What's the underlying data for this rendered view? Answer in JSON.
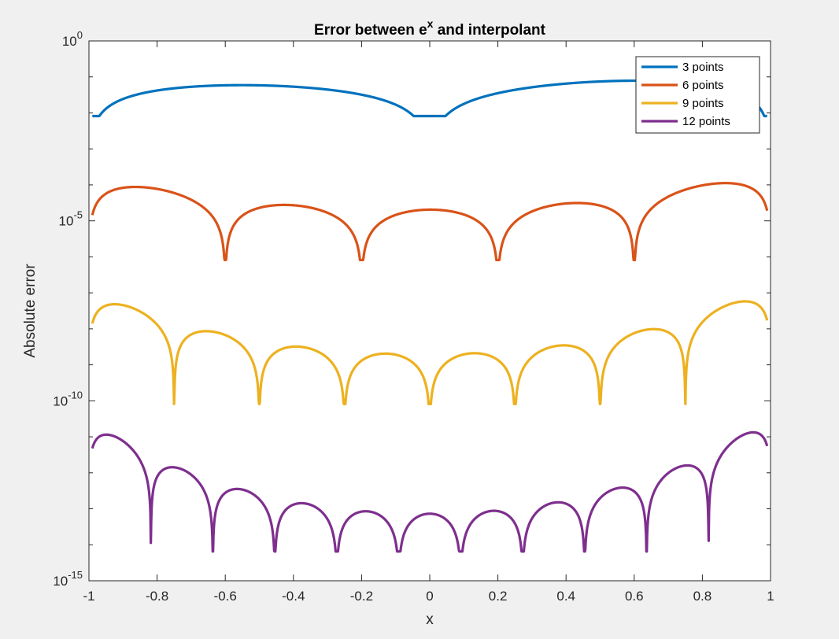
{
  "chart_data": {
    "type": "line",
    "title": "Error between e",
    "title_superscript": "x",
    "title_suffix": " and interpolant",
    "xlabel": "x",
    "ylabel": "Absolute error",
    "xlim": [
      -1,
      1
    ],
    "ylim": [
      1e-15,
      1
    ],
    "yscale": "log",
    "grid": false,
    "legend_position": "top-right",
    "x_ticks": [
      {
        "value": -1,
        "label": "-1"
      },
      {
        "value": -0.8,
        "label": "-0.8"
      },
      {
        "value": -0.6,
        "label": "-0.6"
      },
      {
        "value": -0.4,
        "label": "-0.4"
      },
      {
        "value": -0.2,
        "label": "-0.2"
      },
      {
        "value": 0,
        "label": "0"
      },
      {
        "value": 0.2,
        "label": "0.2"
      },
      {
        "value": 0.4,
        "label": "0.4"
      },
      {
        "value": 0.6,
        "label": "0.6"
      },
      {
        "value": 0.8,
        "label": "0.8"
      },
      {
        "value": 1,
        "label": "1"
      }
    ],
    "y_ticks": [
      {
        "exp": 0,
        "base": "10",
        "sup": "0"
      },
      {
        "exp": -5,
        "base": "10",
        "sup": "-5"
      },
      {
        "exp": -10,
        "base": "10",
        "sup": "-10"
      },
      {
        "exp": -15,
        "base": "10",
        "sup": "-15"
      }
    ],
    "series": [
      {
        "name": "3 points",
        "n": 3,
        "color": "#0072bd"
      },
      {
        "name": "6 points",
        "n": 6,
        "color": "#d95319"
      },
      {
        "name": "9 points",
        "n": 9,
        "color": "#edb120"
      },
      {
        "name": "12 points",
        "n": 12,
        "color": "#7e2f8e"
      }
    ]
  }
}
